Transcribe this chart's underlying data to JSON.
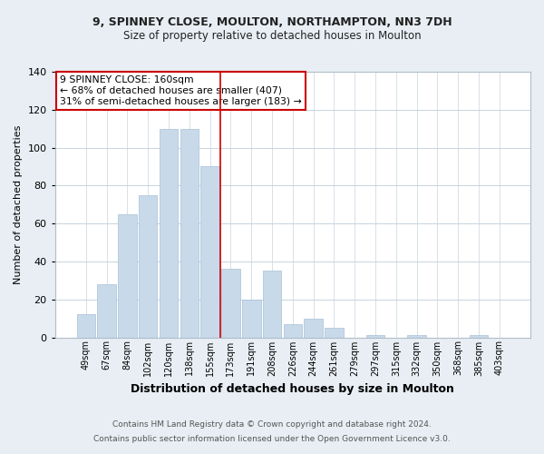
{
  "title_line1": "9, SPINNEY CLOSE, MOULTON, NORTHAMPTON, NN3 7DH",
  "title_line2": "Size of property relative to detached houses in Moulton",
  "xlabel": "Distribution of detached houses by size in Moulton",
  "ylabel": "Number of detached properties",
  "categories": [
    "49sqm",
    "67sqm",
    "84sqm",
    "102sqm",
    "120sqm",
    "138sqm",
    "155sqm",
    "173sqm",
    "191sqm",
    "208sqm",
    "226sqm",
    "244sqm",
    "261sqm",
    "279sqm",
    "297sqm",
    "315sqm",
    "332sqm",
    "350sqm",
    "368sqm",
    "385sqm",
    "403sqm"
  ],
  "values": [
    12,
    28,
    65,
    75,
    110,
    110,
    90,
    36,
    20,
    35,
    7,
    10,
    5,
    0,
    1,
    0,
    1,
    0,
    0,
    1,
    0
  ],
  "bar_color": "#c8d9ea",
  "bar_edge_color": "#a8c0d6",
  "vline_color": "#cc0000",
  "annotation_text": "9 SPINNEY CLOSE: 160sqm\n← 68% of detached houses are smaller (407)\n31% of semi-detached houses are larger (183) →",
  "annotation_box_color": "#ffffff",
  "annotation_box_edge": "#cc0000",
  "footer_line1": "Contains HM Land Registry data © Crown copyright and database right 2024.",
  "footer_line2": "Contains public sector information licensed under the Open Government Licence v3.0.",
  "bg_color": "#e8eef4",
  "plot_bg_color": "#ffffff",
  "ylim": [
    0,
    140
  ],
  "yticks": [
    0,
    20,
    40,
    60,
    80,
    100,
    120,
    140
  ],
  "grid_color": "#c8d4de"
}
